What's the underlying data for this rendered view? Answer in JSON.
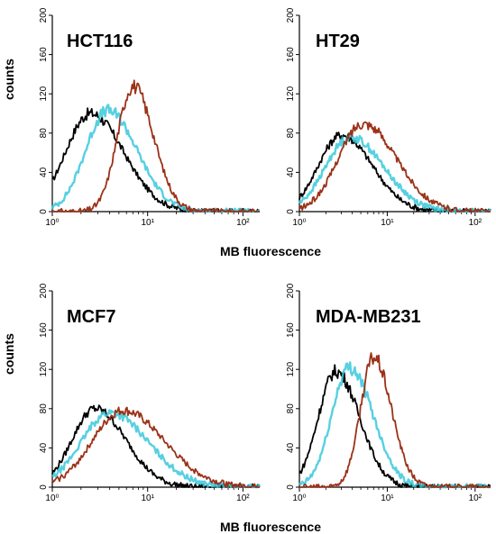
{
  "figure": {
    "x_axis_title": "MB fluorescence",
    "y_axis_title": "counts"
  },
  "chart_data": [
    {
      "type": "line",
      "title": "HCT116",
      "xscale": "log",
      "xlim": [
        1,
        150
      ],
      "ylim": [
        0,
        200
      ],
      "y_ticks": [
        "0",
        "40",
        "80",
        "120",
        "160",
        "200"
      ],
      "x_ticks": [
        "10⁰",
        "10¹",
        "10²"
      ],
      "colors": {
        "black": "#000000",
        "cyan": "#39c8dc",
        "brown": "#9b3218"
      },
      "series": [
        {
          "color": "black",
          "peak_x": 2.5,
          "peak_y": 100,
          "width": 0.26
        },
        {
          "color": "cyan",
          "peak_x": 3.8,
          "peak_y": 103,
          "width": 0.23
        },
        {
          "color": "brown",
          "peak_x": 7.0,
          "peak_y": 128,
          "width": 0.16
        }
      ]
    },
    {
      "type": "line",
      "title": "HT29",
      "xscale": "log",
      "xlim": [
        1,
        150
      ],
      "ylim": [
        0,
        200
      ],
      "y_ticks": [
        "0",
        "40",
        "80",
        "120",
        "160",
        "200"
      ],
      "x_ticks": [
        "10⁰",
        "10¹",
        "10²"
      ],
      "colors": {
        "black": "#000000",
        "cyan": "#39c8dc",
        "brown": "#9b3218"
      },
      "series": [
        {
          "color": "black",
          "peak_x": 3.0,
          "peak_y": 78,
          "width": 0.26
        },
        {
          "color": "cyan",
          "peak_x": 3.8,
          "peak_y": 76,
          "width": 0.28
        },
        {
          "color": "brown",
          "peak_x": 5.3,
          "peak_y": 90,
          "width": 0.28
        }
      ]
    },
    {
      "type": "line",
      "title": "MCF7",
      "xscale": "log",
      "xlim": [
        1,
        150
      ],
      "ylim": [
        0,
        200
      ],
      "y_ticks": [
        "0",
        "40",
        "80",
        "120",
        "160",
        "200"
      ],
      "x_ticks": [
        "10⁰",
        "10¹",
        "10²"
      ],
      "colors": {
        "black": "#000000",
        "cyan": "#39c8dc",
        "brown": "#9b3218"
      },
      "series": [
        {
          "color": "black",
          "peak_x": 2.8,
          "peak_y": 80,
          "width": 0.24
        },
        {
          "color": "cyan",
          "peak_x": 4.0,
          "peak_y": 76,
          "width": 0.3
        },
        {
          "color": "brown",
          "peak_x": 5.5,
          "peak_y": 78,
          "width": 0.32
        }
      ]
    },
    {
      "type": "line",
      "title": "MDA-MB231",
      "xscale": "log",
      "xlim": [
        1,
        150
      ],
      "ylim": [
        0,
        200
      ],
      "y_ticks": [
        "0",
        "40",
        "80",
        "120",
        "160",
        "200"
      ],
      "x_ticks": [
        "10⁰",
        "10¹",
        "10²"
      ],
      "colors": {
        "black": "#000000",
        "cyan": "#39c8dc",
        "brown": "#9b3218"
      },
      "series": [
        {
          "color": "black",
          "peak_x": 2.6,
          "peak_y": 118,
          "width": 0.2
        },
        {
          "color": "cyan",
          "peak_x": 3.7,
          "peak_y": 122,
          "width": 0.2
        },
        {
          "color": "brown",
          "peak_x": 7.0,
          "peak_y": 132,
          "width": 0.15
        }
      ]
    }
  ]
}
